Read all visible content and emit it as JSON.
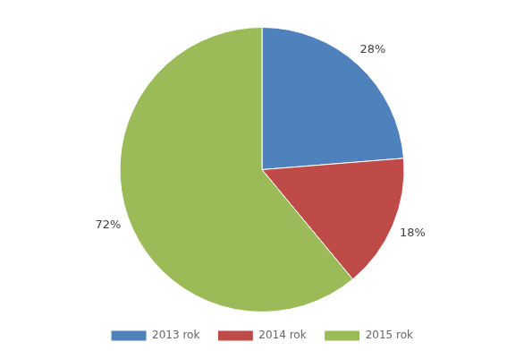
{
  "chart_data": {
    "type": "pie",
    "categories": [
      "2013 rok",
      "2014 rok",
      "2015 rok"
    ],
    "values": [
      28,
      18,
      72
    ],
    "value_labels": [
      "28%",
      "18%",
      "72%"
    ],
    "colors": [
      "#4F81BD",
      "#BE4B48",
      "#9BBB59"
    ],
    "data_labels": true,
    "legend": "bottom"
  }
}
